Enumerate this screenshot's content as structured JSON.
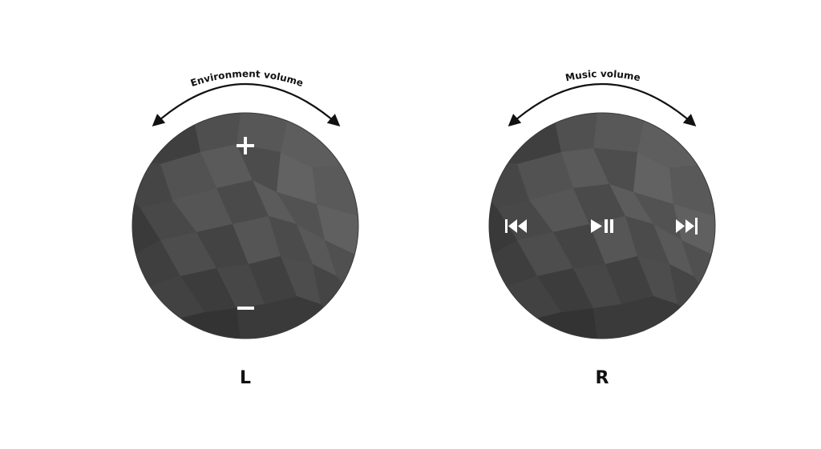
{
  "colors": {
    "arrow": "#111111",
    "knob_base": "#4a4a4a",
    "symbol": "#ffffff",
    "label": "#111111"
  },
  "left_knob": {
    "arc_label": "Environment volume",
    "side_label": "L",
    "plus_icon": "plus-icon",
    "minus_icon": "minus-icon"
  },
  "right_knob": {
    "arc_label": "Music volume",
    "side_label": "R",
    "previous_icon": "previous-track-icon",
    "play_pause_icon": "play-pause-icon",
    "next_icon": "next-track-icon"
  }
}
